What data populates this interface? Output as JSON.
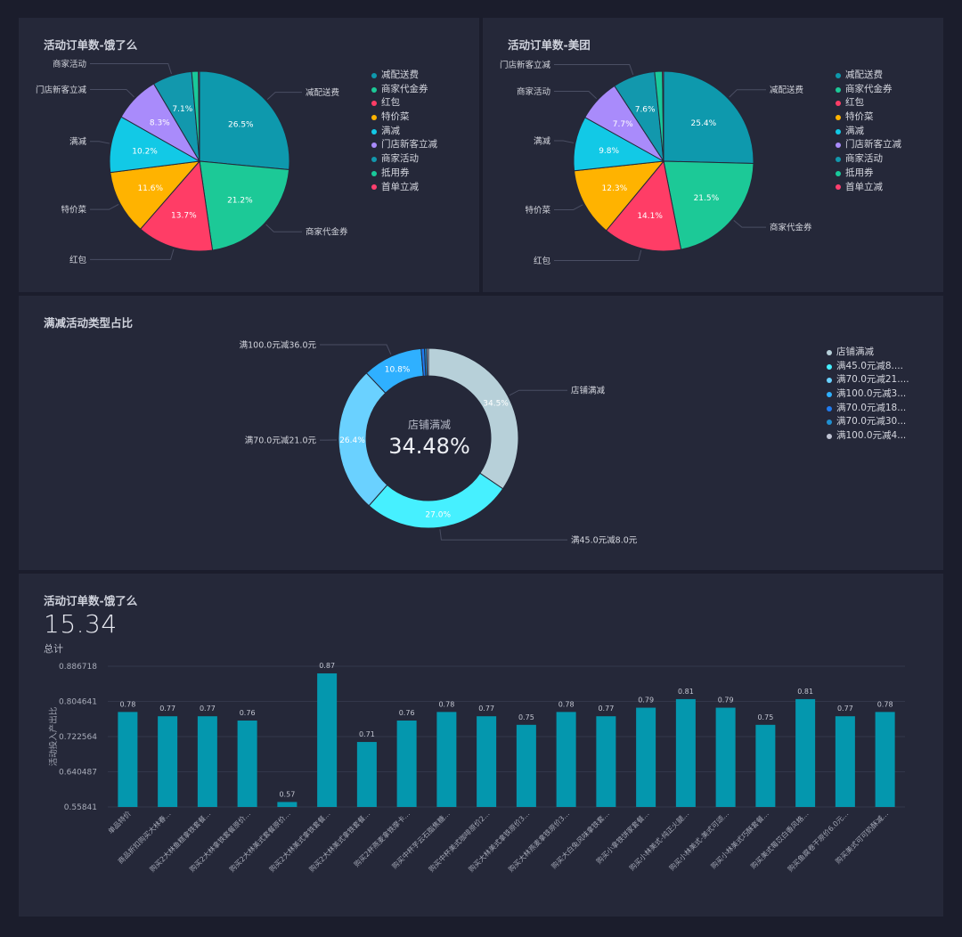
{
  "colors": {
    "background": "#1b1d2c",
    "panel": "#252839"
  },
  "pie_colors": [
    "#0e99ad",
    "#1cc997",
    "#ff3d66",
    "#ffb300",
    "#12c9e6",
    "#a98bfb",
    "#1298ad",
    "#19c99a",
    "#ff3f6e"
  ],
  "donut_colors": [
    "#b7d0d9",
    "#46f0ff",
    "#6ad1ff",
    "#2fb0ff",
    "#1f7bf0",
    "#2090d0",
    "#c0c4d4"
  ],
  "bar_color": "#0497ae",
  "panels": {
    "eleme": {
      "title": "活动订单数-饿了么"
    },
    "meituan": {
      "title": "活动订单数-美团"
    },
    "fullreduce": {
      "title": "满减活动类型占比"
    },
    "bars": {
      "title": "活动订单数-饿了么",
      "total_value": "15.34",
      "total_label": "总计"
    }
  },
  "legend_pies": [
    "减配送费",
    "商家代金券",
    "红包",
    "特价菜",
    "满减",
    "门店新客立减",
    "商家活动",
    "抵用券",
    "首单立减"
  ],
  "legend_donut": [
    "店铺满减",
    "满45.0元减8....",
    "满70.0元减21....",
    "满100.0元减3...",
    "满70.0元减18...",
    "满70.0元减30...",
    "满100.0元减4..."
  ],
  "donut_center": {
    "label": "店铺满减",
    "value": "34.48%"
  },
  "chart_data": [
    {
      "type": "pie",
      "title": "活动订单数-饿了么",
      "categories": [
        "减配送费",
        "商家代金券",
        "红包",
        "特价菜",
        "满减",
        "门店新客立减",
        "商家活动",
        "抵用券",
        "首单立减"
      ],
      "values": [
        26.5,
        21.2,
        13.7,
        11.6,
        10.2,
        8.3,
        7.1,
        1.2,
        0.2
      ],
      "value_labels": [
        "26.5%",
        "21.2%",
        "13.7%",
        "11.6%",
        "10.2%",
        "8.3%",
        "7.1%",
        "",
        ""
      ],
      "outside_labels": [
        "减配送费",
        "商家代金券",
        "红包",
        "特价菜",
        "满减",
        "门店新客立减",
        "商家活动",
        "",
        ""
      ],
      "legend_position": "right"
    },
    {
      "type": "pie",
      "title": "活动订单数-美团",
      "categories": [
        "减配送费",
        "商家代金券",
        "红包",
        "特价菜",
        "满减",
        "商家活动",
        "门店新客立减",
        "抵用券",
        "首单立减"
      ],
      "values": [
        25.4,
        21.5,
        14.1,
        12.3,
        9.8,
        7.7,
        7.6,
        1.4,
        0.2
      ],
      "value_labels": [
        "25.4%",
        "21.5%",
        "14.1%",
        "12.3%",
        "9.8%",
        "7.7%",
        "7.6%",
        "",
        ""
      ],
      "outside_labels": [
        "减配送费",
        "商家代金券",
        "红包",
        "特价菜",
        "满减",
        "商家活动",
        "门店新客立减",
        "",
        ""
      ],
      "legend_position": "right"
    },
    {
      "type": "pie",
      "title": "满减活动类型占比",
      "categories": [
        "店铺满减",
        "满45.0元减8.0元",
        "满70.0元减21.0元",
        "满100.0元减36.0元",
        "满70.0元减18",
        "满70.0元减30",
        "满100.0元减4"
      ],
      "values": [
        34.5,
        27.0,
        26.4,
        10.8,
        0.6,
        0.4,
        0.3
      ],
      "value_labels": [
        "34.5%",
        "27.0%",
        "26.4%",
        "10.8%",
        "",
        "",
        ""
      ],
      "outside_labels": [
        "店铺满减",
        "满45.0元减8.0元",
        "满70.0元减21.0元",
        "满100.0元减36.0元",
        "",
        "",
        ""
      ],
      "legend_position": "right"
    },
    {
      "type": "bar",
      "title": "活动订单数-饿了么",
      "ylabel": "活动投入产出比",
      "ylim": [
        0.55841,
        0.886718
      ],
      "yticks": [
        "0.886718",
        "0.804641",
        "0.722564",
        "0.640487",
        "0.55841"
      ],
      "grid": true,
      "categories": [
        "单品特价",
        "商品折扣购买大林春...",
        "购买2大林鱼糕拿铁套餐...",
        "购买2大林拿铁套餐原价...",
        "购买2大林美式套餐原价...",
        "购买2大林美式拿铁套餐...",
        "购买2大林美式拿铁套餐...",
        "购买2杯燕麦拿铁摩卡...",
        "购买中杯芋云石脂焦糖...",
        "购买中杯美式咖啡原价2...",
        "购买大林美式拿铁原价3...",
        "购买大林燕麦拿铁原价3...",
        "购买大白兔风味拿铁套...",
        "购买小拿铁饼家套餐...",
        "购买小林美式-纯正火腿...",
        "购买小林美式-美式可颂...",
        "购买小林美式巧酥套餐...",
        "购买美式莓苡白香风格...",
        "购买鱼腐卷干原价6.0元...",
        "购买美式可可奶酥减..."
      ],
      "values": [
        0.78,
        0.77,
        0.77,
        0.76,
        0.57,
        0.87,
        0.71,
        0.76,
        0.78,
        0.77,
        0.75,
        0.78,
        0.77,
        0.79,
        0.81,
        0.79,
        0.75,
        0.81,
        0.77,
        0.78
      ],
      "value_labels": [
        "0.78",
        "0.77",
        "0.77",
        "0.76",
        "0.57",
        "0.87",
        "0.71",
        "0.76",
        "0.78",
        "0.77",
        "0.75",
        "0.78",
        "0.77",
        "0.79",
        "0.81",
        "0.79",
        "0.75",
        "0.81",
        "0.77",
        "0.78"
      ]
    }
  ]
}
